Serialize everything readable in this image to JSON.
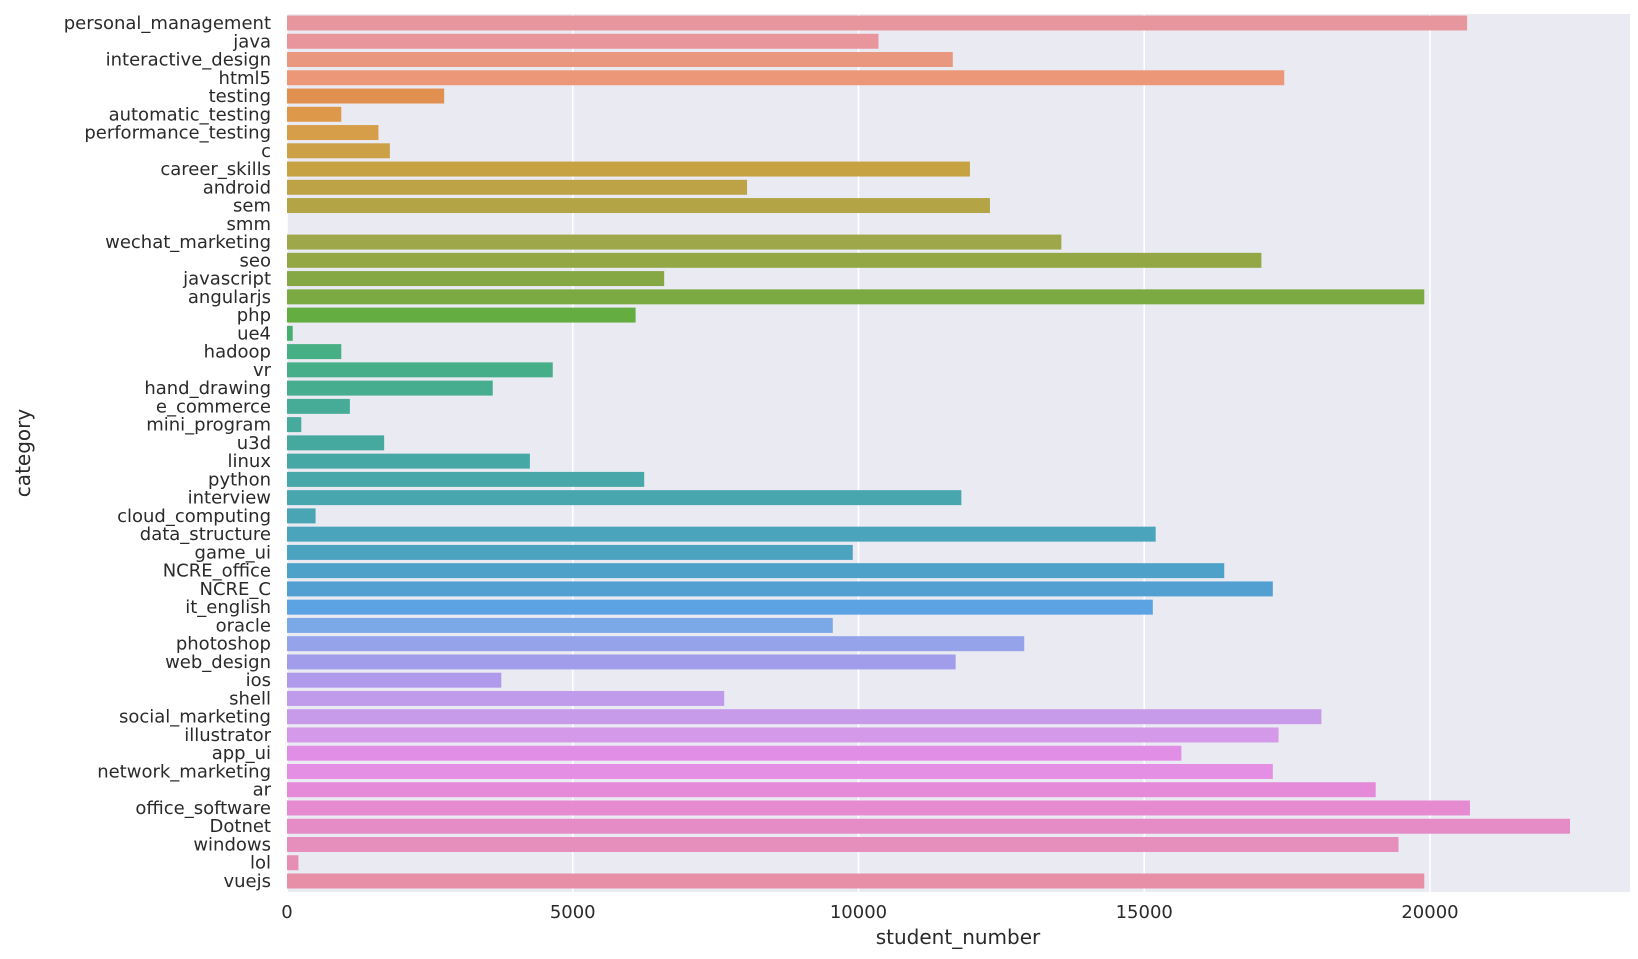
{
  "chart_data": {
    "type": "bar",
    "orientation": "horizontal",
    "xlabel": "student_number",
    "ylabel": "category",
    "xlim": [
      0,
      23500
    ],
    "xticks": [
      0,
      5000,
      10000,
      15000,
      20000
    ],
    "xtick_labels": [
      "0",
      "5000",
      "10000",
      "15000",
      "20000"
    ],
    "grid": true,
    "categories": [
      "personal_management",
      "java",
      "interactive_design",
      "html5",
      "testing",
      "automatic_testing",
      "performance_testing",
      "c",
      "career_skills",
      "android",
      "sem",
      "smm",
      "wechat_marketing",
      "seo",
      "javascript",
      "angularjs",
      "php",
      "ue4",
      "hadoop",
      "vr",
      "hand_drawing",
      "e_commerce",
      "mini_program",
      "u3d",
      "linux",
      "python",
      "interview",
      "cloud_computing",
      "data_structure",
      "game_ui",
      "NCRE_office",
      "NCRE_C",
      "it_english",
      "oracle",
      "photoshop",
      "web_design",
      "ios",
      "shell",
      "social_marketing",
      "illustrator",
      "app_ui",
      "network_marketing",
      "ar",
      "office_software",
      "Dotnet",
      "windows",
      "lol",
      "vuejs"
    ],
    "values": [
      20650,
      10350,
      11650,
      17450,
      2750,
      950,
      1600,
      1800,
      11950,
      8050,
      12300,
      0,
      13550,
      17050,
      6600,
      19900,
      6100,
      100,
      950,
      4650,
      3600,
      1100,
      250,
      1700,
      4250,
      6250,
      11800,
      500,
      15200,
      9900,
      16400,
      17250,
      15150,
      9550,
      12900,
      11700,
      3750,
      7650,
      18100,
      17350,
      15650,
      17250,
      19050,
      20700,
      22450,
      19450,
      200,
      19900
    ],
    "colors": [
      "#e8969e",
      "#e8959c",
      "#e9977e",
      "#eb9778",
      "#e2904f",
      "#de9849",
      "#d69e48",
      "#cba047",
      "#c6a242",
      "#bda345",
      "#b3a445",
      "#a8a643",
      "#9ea74a",
      "#93a744",
      "#86a844",
      "#7ba942",
      "#64ad41",
      "#47af6e",
      "#46af83",
      "#46ae88",
      "#47ad8f",
      "#46ac97",
      "#46aa9c",
      "#46a99f",
      "#46a8a5",
      "#47a7a9",
      "#48a6af",
      "#49a5b4",
      "#4aa4bb",
      "#4ba3c0",
      "#4ea1c8",
      "#52a0d2",
      "#5ba3e2",
      "#7ba8e6",
      "#94a3ea",
      "#a19deb",
      "#b09aeb",
      "#c09aeb",
      "#c89aea",
      "#d499e8",
      "#e18ee7",
      "#e48ee4",
      "#e58ad8",
      "#e78bd0",
      "#e58cc6",
      "#e68fbc",
      "#e78fb2",
      "#e78fa6"
    ]
  }
}
